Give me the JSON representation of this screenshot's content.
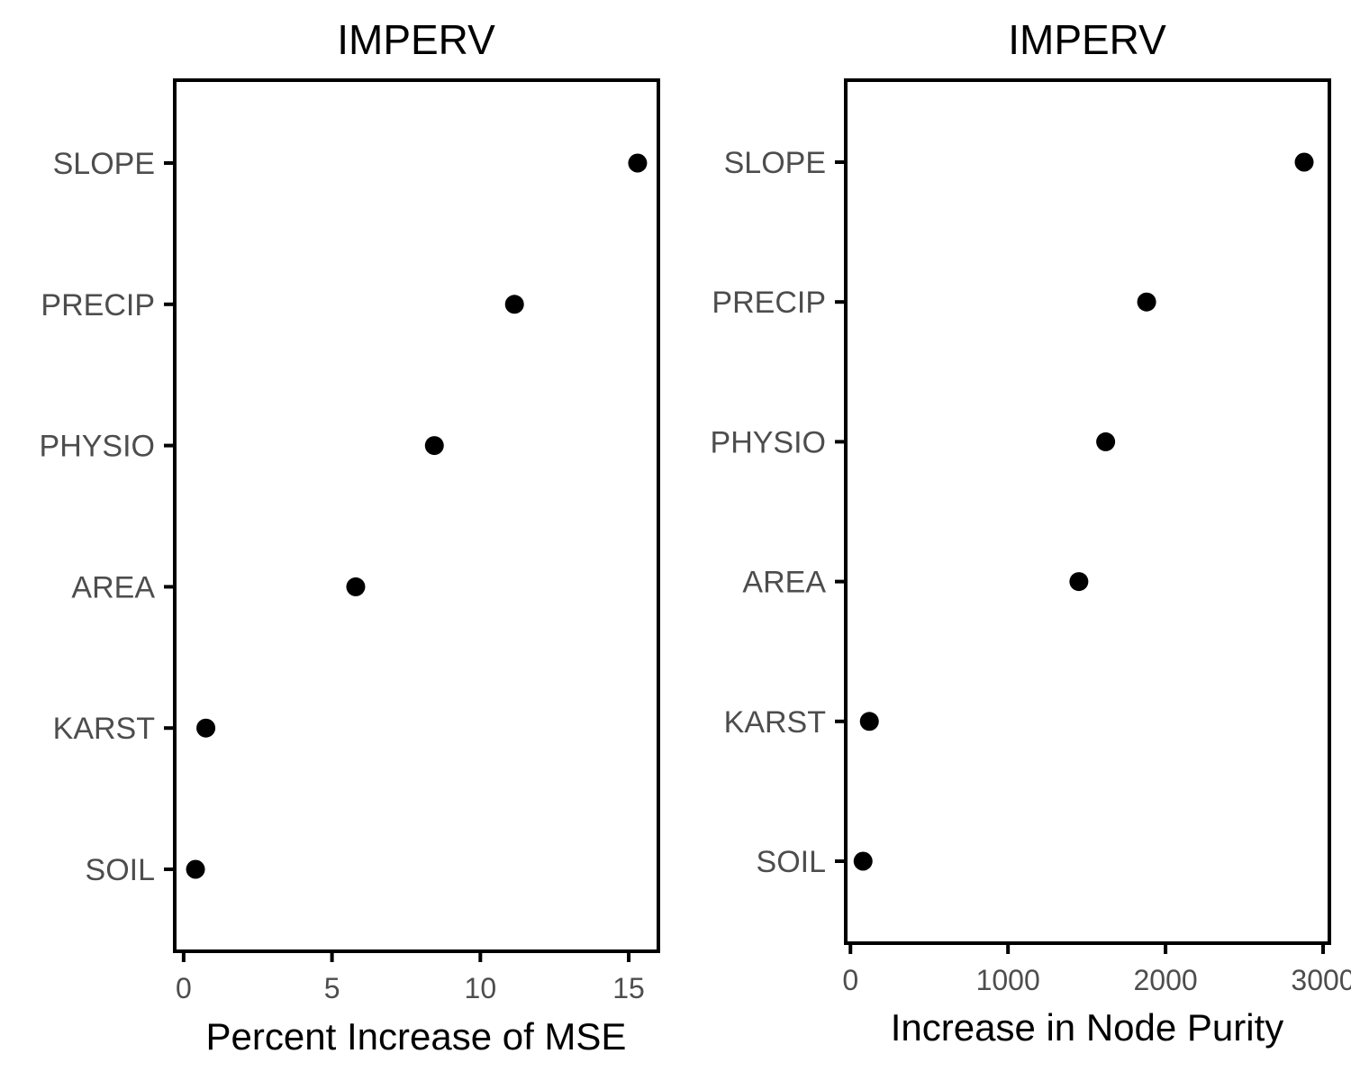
{
  "chart_data": [
    {
      "type": "scatter",
      "title": "IMPERV",
      "xlabel": "Percent Increase of MSE",
      "ylabel": "",
      "categories": [
        "SOIL",
        "KARST",
        "AREA",
        "PHYSIO",
        "PRECIP",
        "SLOPE"
      ],
      "values": [
        0.4,
        0.75,
        5.8,
        8.45,
        11.15,
        15.3
      ],
      "xlim": [
        -0.3,
        16.0
      ],
      "xticks": [
        "0",
        "5",
        "10",
        "15"
      ],
      "xtick_values": [
        0,
        5,
        10,
        15
      ],
      "grid": false,
      "point_color": "#000000"
    },
    {
      "type": "scatter",
      "title": "IMPERV",
      "xlabel": "Increase in Node Purity",
      "ylabel": "",
      "categories": [
        "SOIL",
        "KARST",
        "AREA",
        "PHYSIO",
        "PRECIP",
        "SLOPE"
      ],
      "values": [
        80,
        120,
        1450,
        1620,
        1880,
        2880
      ],
      "xlim": [
        -30,
        3040
      ],
      "xticks": [
        "0",
        "1000",
        "2000",
        "3000"
      ],
      "xtick_values": [
        0,
        1000,
        2000,
        3000
      ],
      "grid": false,
      "point_color": "#000000"
    }
  ]
}
